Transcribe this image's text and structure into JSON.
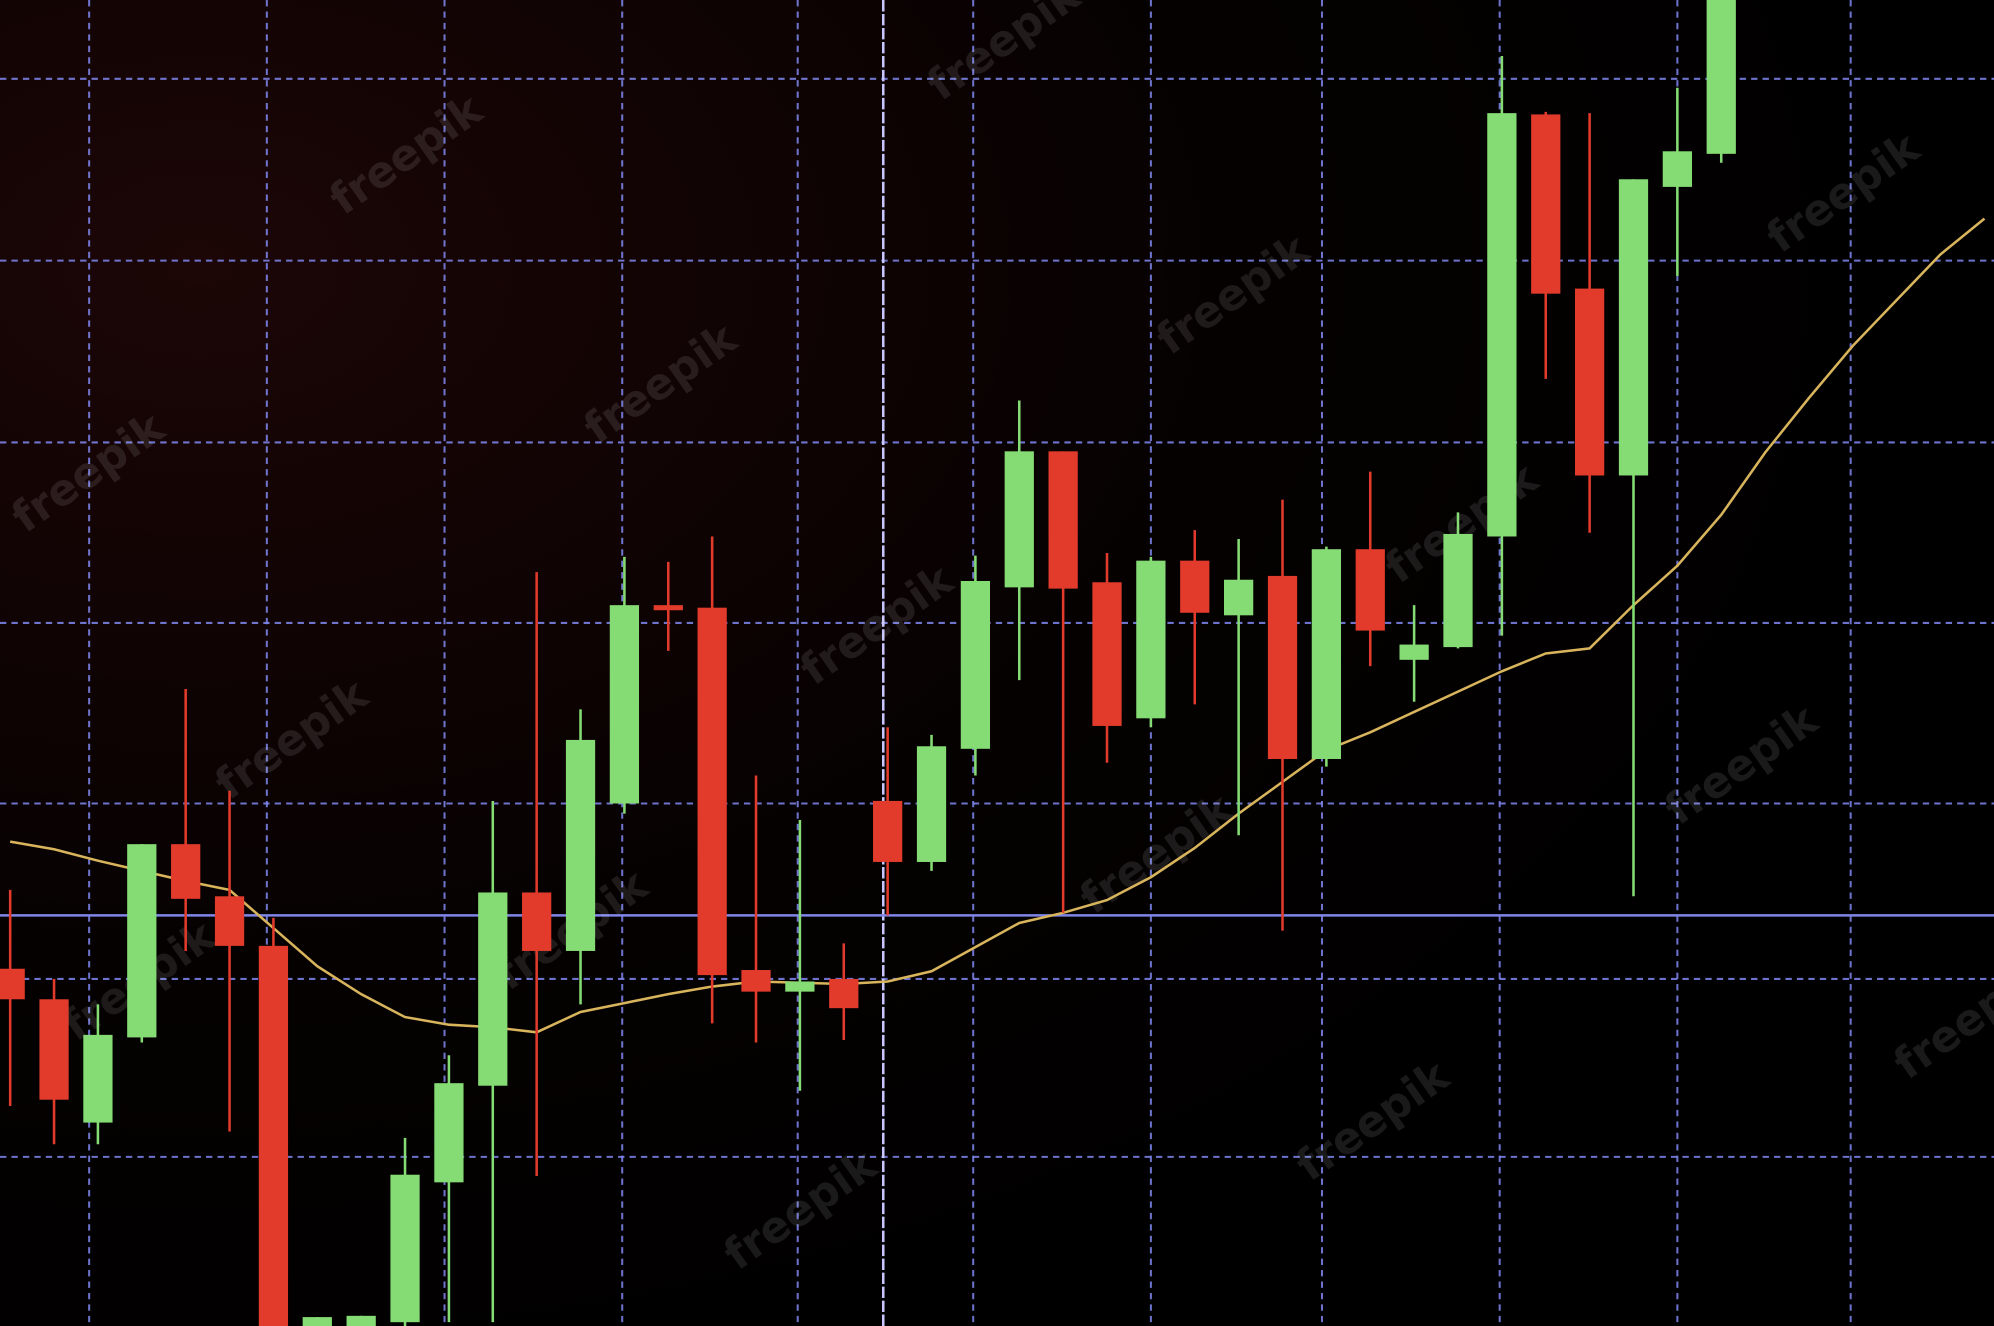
{
  "chart_data": {
    "type": "candlestick",
    "watermark": "freepik",
    "x": [
      0,
      1,
      2,
      3,
      4,
      5,
      6,
      7,
      8,
      9,
      10,
      11,
      12,
      13,
      14,
      15,
      16,
      17,
      18,
      19,
      20,
      21,
      22,
      23,
      24,
      25,
      26,
      27,
      28,
      29,
      30,
      31,
      32,
      33,
      34,
      35,
      36,
      37,
      38,
      39
    ],
    "open": [
      281,
      257,
      160,
      227,
      379,
      338,
      299,
      0,
      0,
      3,
      113,
      189,
      341,
      295,
      411,
      567,
      565,
      280,
      263,
      273,
      413,
      365,
      454,
      581,
      688,
      585,
      478,
      602,
      559,
      590,
      446,
      611,
      524,
      534,
      621,
      953,
      816,
      669,
      896,
      922
    ],
    "high": [
      343,
      273,
      253,
      379,
      501,
      421,
      321,
      7,
      8,
      148,
      213,
      413,
      593,
      485,
      605,
      601,
      621,
      433,
      398,
      301,
      471,
      465,
      606,
      728,
      688,
      608,
      605,
      626,
      619,
      650,
      613,
      672,
      567,
      640,
      999,
      955,
      954,
      902,
      974,
      1043
    ],
    "low": [
      173,
      143,
      143,
      223,
      295,
      153,
      0,
      0,
      0,
      0,
      3,
      3,
      118,
      253,
      403,
      531,
      238,
      223,
      185,
      225,
      323,
      358,
      433,
      508,
      325,
      443,
      471,
      489,
      386,
      311,
      440,
      519,
      491,
      533,
      543,
      745,
      624,
      338,
      826,
      915
    ],
    "close": [
      257,
      178,
      229,
      379,
      336,
      299,
      0,
      7,
      8,
      119,
      191,
      341,
      295,
      461,
      567,
      563,
      276,
      263,
      271,
      250,
      365,
      456,
      586,
      688,
      580,
      472,
      602,
      561,
      587,
      446,
      611,
      547,
      536,
      623,
      954,
      812,
      669,
      902,
      924,
      1043
    ],
    "up_color": "#86dc74",
    "down_color": "#e23b2b",
    "moving_average": {
      "color": "#d8b45c",
      "x": [
        0,
        1,
        2,
        3,
        4,
        5,
        6,
        7,
        8,
        9,
        10,
        11,
        12,
        13,
        14,
        15,
        16,
        17,
        18,
        19,
        20,
        21,
        22,
        23,
        24,
        25,
        26,
        27,
        28,
        29,
        30,
        31,
        32,
        33,
        34,
        35,
        36,
        37,
        38,
        39,
        40,
        41,
        42,
        43,
        44,
        45
      ],
      "values": [
        381,
        375,
        366,
        358,
        350,
        343,
        313,
        283,
        261,
        243,
        237,
        235,
        231,
        247,
        254,
        261,
        267,
        271,
        270,
        269,
        271,
        279,
        298,
        317,
        325,
        335,
        353,
        376,
        403,
        428,
        453,
        467,
        483,
        499,
        515,
        529,
        533,
        567,
        598,
        638,
        687,
        730,
        771,
        807,
        843,
        871
      ]
    },
    "reference_line": {
      "value": 323,
      "color": "#7f86e8"
    },
    "cursor_x": 19.9,
    "xlim": [
      -0.232,
      45.217
    ],
    "ylim": [
      0,
      1043
    ],
    "xticks": [
      1.8,
      5.85,
      9.9,
      13.95,
      17.95,
      21.95,
      26,
      29.9,
      33.95,
      38,
      41.95
    ],
    "yticks": [
      133,
      273,
      411,
      553,
      695,
      838,
      981
    ],
    "grid": true,
    "grid_color": "#8088f0"
  }
}
